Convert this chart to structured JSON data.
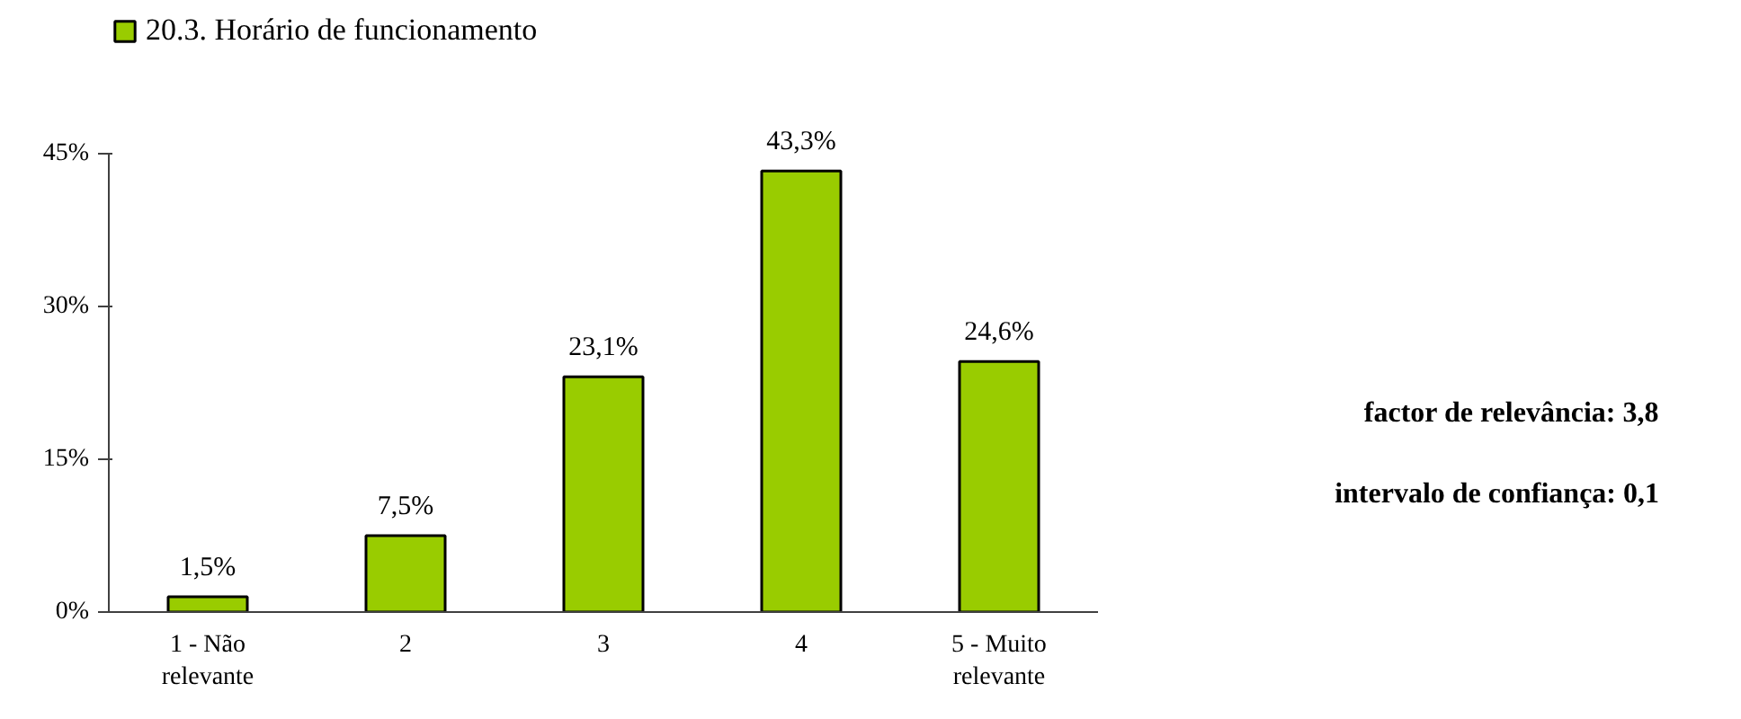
{
  "chart_data": {
    "type": "bar",
    "categories": [
      "1 - Não\nrelevante",
      "2",
      "3",
      "4",
      "5 - Muito\nrelevante"
    ],
    "series": [
      {
        "name": "20.3. Horário de funcionamento",
        "color": "#99cc00",
        "values": [
          1.5,
          7.5,
          23.1,
          43.3,
          24.6
        ],
        "value_labels": [
          "1,5%",
          "7,5%",
          "23,1%",
          "43,3%",
          "24,6%"
        ]
      }
    ],
    "ylim": [
      0,
      45
    ],
    "yticks": [
      {
        "value": 0,
        "label": "0%"
      },
      {
        "value": 15,
        "label": "15%"
      },
      {
        "value": 30,
        "label": "30%"
      },
      {
        "value": 45,
        "label": "45%"
      }
    ],
    "grid": false,
    "legend": "top left",
    "annotations": [
      "factor de relevância:   3,8",
      "intervalo de confiança:   0,1"
    ]
  }
}
